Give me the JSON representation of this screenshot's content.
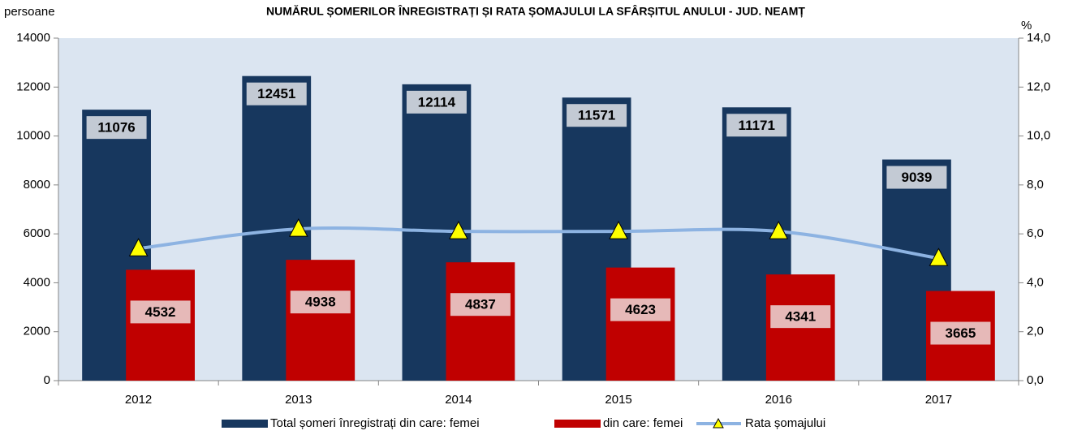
{
  "chart_data": {
    "type": "bar-line",
    "title": "NUMĂRUL ȘOMERILOR ÎNREGISTRAȚI ȘI RATA ȘOMAJULUI LA SFÂRȘITUL ANULUI - JUD. NEAMȚ",
    "y_label": "persoane",
    "y2_label": "%",
    "categories": [
      "2012",
      "2013",
      "2014",
      "2015",
      "2016",
      "2017"
    ],
    "series": [
      {
        "name": "Total șomeri înregistrați din care: femei",
        "type": "bar",
        "color": "#17375e",
        "label_box": "#c3cad4",
        "values": [
          11076,
          12451,
          12114,
          11571,
          11171,
          9039
        ]
      },
      {
        "name": "din care: femei",
        "type": "bar",
        "color": "#c00000",
        "label_box": "#e6b9b8",
        "values": [
          4532,
          4938,
          4837,
          4623,
          4341,
          3665
        ]
      },
      {
        "name": "Rata șomajului",
        "type": "line",
        "axis": "y2",
        "color": "#8db3e2",
        "marker_color": "#ffff00",
        "values": [
          5.4,
          6.2,
          6.1,
          6.1,
          6.1,
          5.0
        ]
      }
    ],
    "ylim": [
      0,
      14000
    ],
    "yticks": [
      0,
      2000,
      4000,
      6000,
      8000,
      10000,
      12000,
      14000
    ],
    "y2lim": [
      0,
      14
    ],
    "y2ticks": [
      {
        "value": 0,
        "label": "0,0"
      },
      {
        "value": 2,
        "label": "2,0"
      },
      {
        "value": 4,
        "label": "4,0"
      },
      {
        "value": 6,
        "label": "6,0"
      },
      {
        "value": 8,
        "label": "8,0"
      },
      {
        "value": 10,
        "label": "10,0"
      },
      {
        "value": 12,
        "label": "12,0"
      },
      {
        "value": 14,
        "label": "14,0"
      }
    ],
    "plot_background": "#dbe5f1"
  }
}
